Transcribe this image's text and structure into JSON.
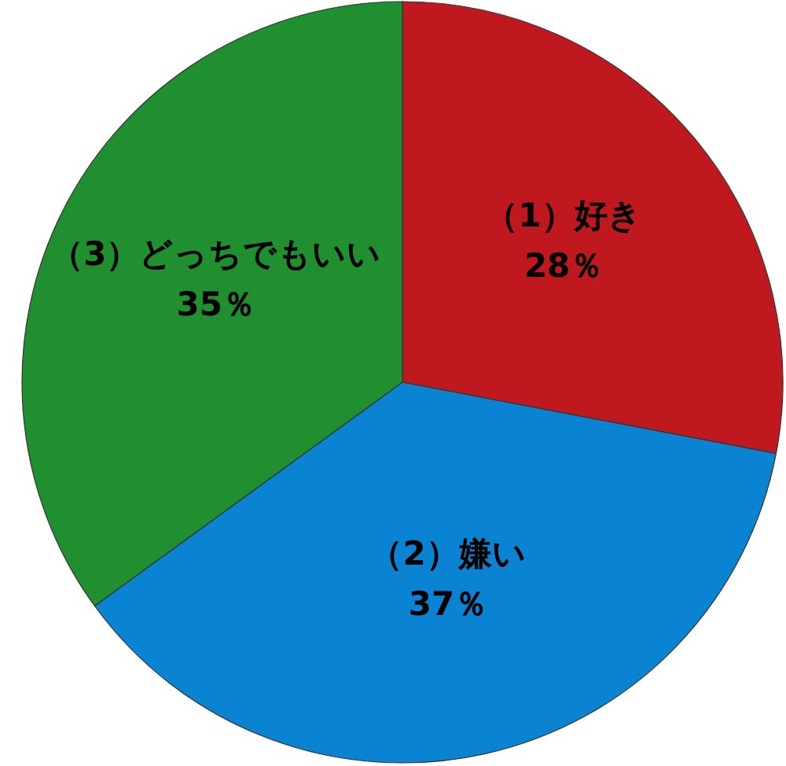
{
  "chart_data": {
    "type": "pie",
    "categories": [
      "（1）好き",
      "（2）嫌い",
      "（3）どっちでもいい"
    ],
    "values": [
      28,
      37,
      35
    ],
    "colors": [
      "#c0181f",
      "#0a84d2",
      "#1f8f30"
    ],
    "value_labels": [
      "28％",
      "37％",
      "35％"
    ]
  }
}
